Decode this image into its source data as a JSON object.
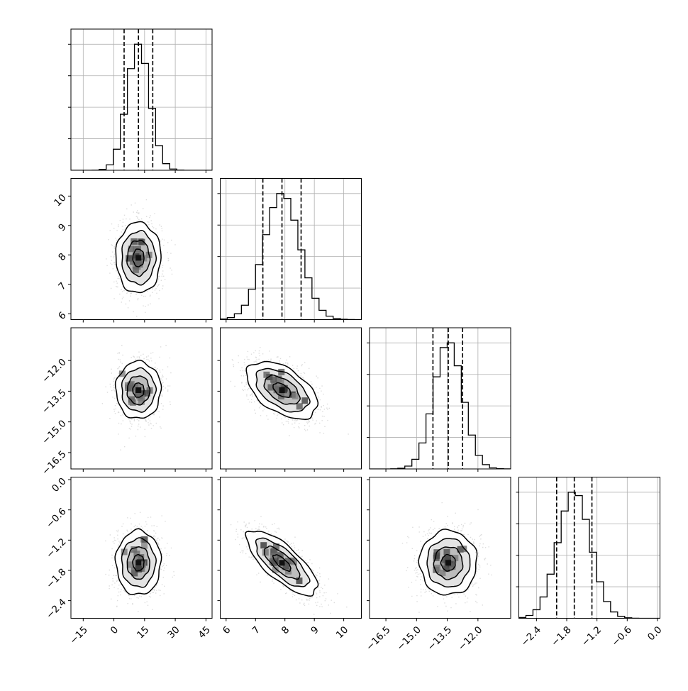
{
  "chart_data": {
    "type": "corner",
    "n_params": 4,
    "colors": {
      "line": "#000000",
      "grid": "#b0b0b0",
      "scatter": "#808080"
    },
    "params": [
      {
        "range": [
          -21,
          48
        ],
        "ticks": [
          -15,
          0,
          15,
          30,
          45
        ],
        "tick_labels": [
          "−15",
          "0",
          "15",
          "30",
          "45"
        ],
        "quantiles": [
          5,
          12,
          19
        ],
        "mean": 12,
        "sd": 5.5
      },
      {
        "range": [
          5.8,
          10.6
        ],
        "ticks": [
          6,
          7,
          8,
          9,
          10
        ],
        "tick_labels": [
          "6",
          "7",
          "8",
          "9",
          "10"
        ],
        "quantiles": [
          7.25,
          7.9,
          8.55
        ],
        "mean": 7.9,
        "sd": 0.6
      },
      {
        "range": [
          -17.3,
          -10.4
        ],
        "ticks": [
          -16.5,
          -15.0,
          -13.5,
          -12.0
        ],
        "tick_labels": [
          "−16.5",
          "−15.0",
          "−13.5",
          "−12.0"
        ],
        "quantiles": [
          -14.2,
          -13.45,
          -12.75
        ],
        "mean": -13.45,
        "sd": 0.7
      },
      {
        "range": [
          -2.75,
          0.05
        ],
        "ticks": [
          -2.4,
          -1.8,
          -1.2,
          -0.6,
          0.0
        ],
        "tick_labels": [
          "−2.4",
          "−1.8",
          "−1.2",
          "−0.6",
          "0.0"
        ],
        "quantiles": [
          -2.0,
          -1.65,
          -1.3
        ],
        "mean": -1.65,
        "sd": 0.32
      }
    ],
    "correlations": [
      {
        "row": 1,
        "col": 0,
        "r": 0.0
      },
      {
        "row": 2,
        "col": 0,
        "r": 0.0
      },
      {
        "row": 2,
        "col": 1,
        "r": -0.5
      },
      {
        "row": 3,
        "col": 0,
        "r": 0.0
      },
      {
        "row": 3,
        "col": 1,
        "r": -0.75
      },
      {
        "row": 3,
        "col": 2,
        "r": 0.0
      }
    ],
    "histogram_bins": 20,
    "contour_levels_sigma": [
      0.5,
      1.0,
      1.5,
      2.0
    ],
    "grid": true,
    "legend": "none"
  }
}
